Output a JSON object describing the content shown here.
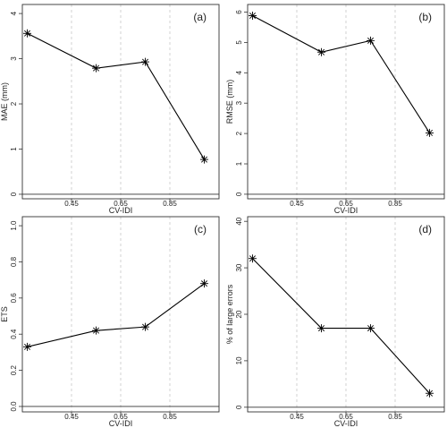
{
  "chart_data": [
    {
      "type": "line",
      "panel_label": "(a)",
      "xlabel": "CV-IDI",
      "ylabel": "MAE (mm)",
      "x_ticks": [
        "0.45",
        "0.65",
        "0.85"
      ],
      "y_ticks": [
        "0",
        "1",
        "2",
        "3",
        "4"
      ],
      "xlim": [
        0.25,
        1.05
      ],
      "ylim": [
        -0.1,
        4.2
      ],
      "x": [
        0.27,
        0.55,
        0.75,
        0.99
      ],
      "y": [
        3.56,
        2.79,
        2.93,
        0.77
      ],
      "grid": "vertical dashed",
      "marker": "asterisk"
    },
    {
      "type": "line",
      "panel_label": "(b)",
      "xlabel": "CV-IDI",
      "ylabel": "RMSE (mm)",
      "x_ticks": [
        "0.45",
        "0.65",
        "0.85"
      ],
      "y_ticks": [
        "0",
        "1",
        "2",
        "3",
        "4",
        "5",
        "6"
      ],
      "xlim": [
        0.25,
        1.05
      ],
      "ylim": [
        -0.15,
        6.25
      ],
      "x": [
        0.27,
        0.55,
        0.75,
        0.99
      ],
      "y": [
        5.88,
        4.68,
        5.06,
        2.02
      ],
      "grid": "vertical dashed",
      "marker": "asterisk"
    },
    {
      "type": "line",
      "panel_label": "(c)",
      "xlabel": "CV-IDI",
      "ylabel": "ETS",
      "x_ticks": [
        "0.45",
        "0.65",
        "0.85"
      ],
      "y_ticks": [
        "0.0",
        "0.2",
        "0.4",
        "0.6",
        "0.8",
        "1.0"
      ],
      "xlim": [
        0.25,
        1.05
      ],
      "ylim": [
        -0.03,
        1.05
      ],
      "x": [
        0.27,
        0.55,
        0.75,
        0.99
      ],
      "y": [
        0.33,
        0.42,
        0.44,
        0.68
      ],
      "grid": "vertical dashed",
      "marker": "asterisk"
    },
    {
      "type": "line",
      "panel_label": "(d)",
      "xlabel": "CV-IDI",
      "ylabel": "% of large errors",
      "x_ticks": [
        "0.45",
        "0.65",
        "0.85"
      ],
      "y_ticks": [
        "0",
        "10",
        "20",
        "30",
        "40"
      ],
      "xlim": [
        0.25,
        1.05
      ],
      "ylim": [
        -1,
        41
      ],
      "x": [
        0.27,
        0.55,
        0.75,
        0.99
      ],
      "y": [
        32,
        17,
        17,
        3
      ],
      "grid": "vertical dashed",
      "marker": "asterisk"
    }
  ]
}
